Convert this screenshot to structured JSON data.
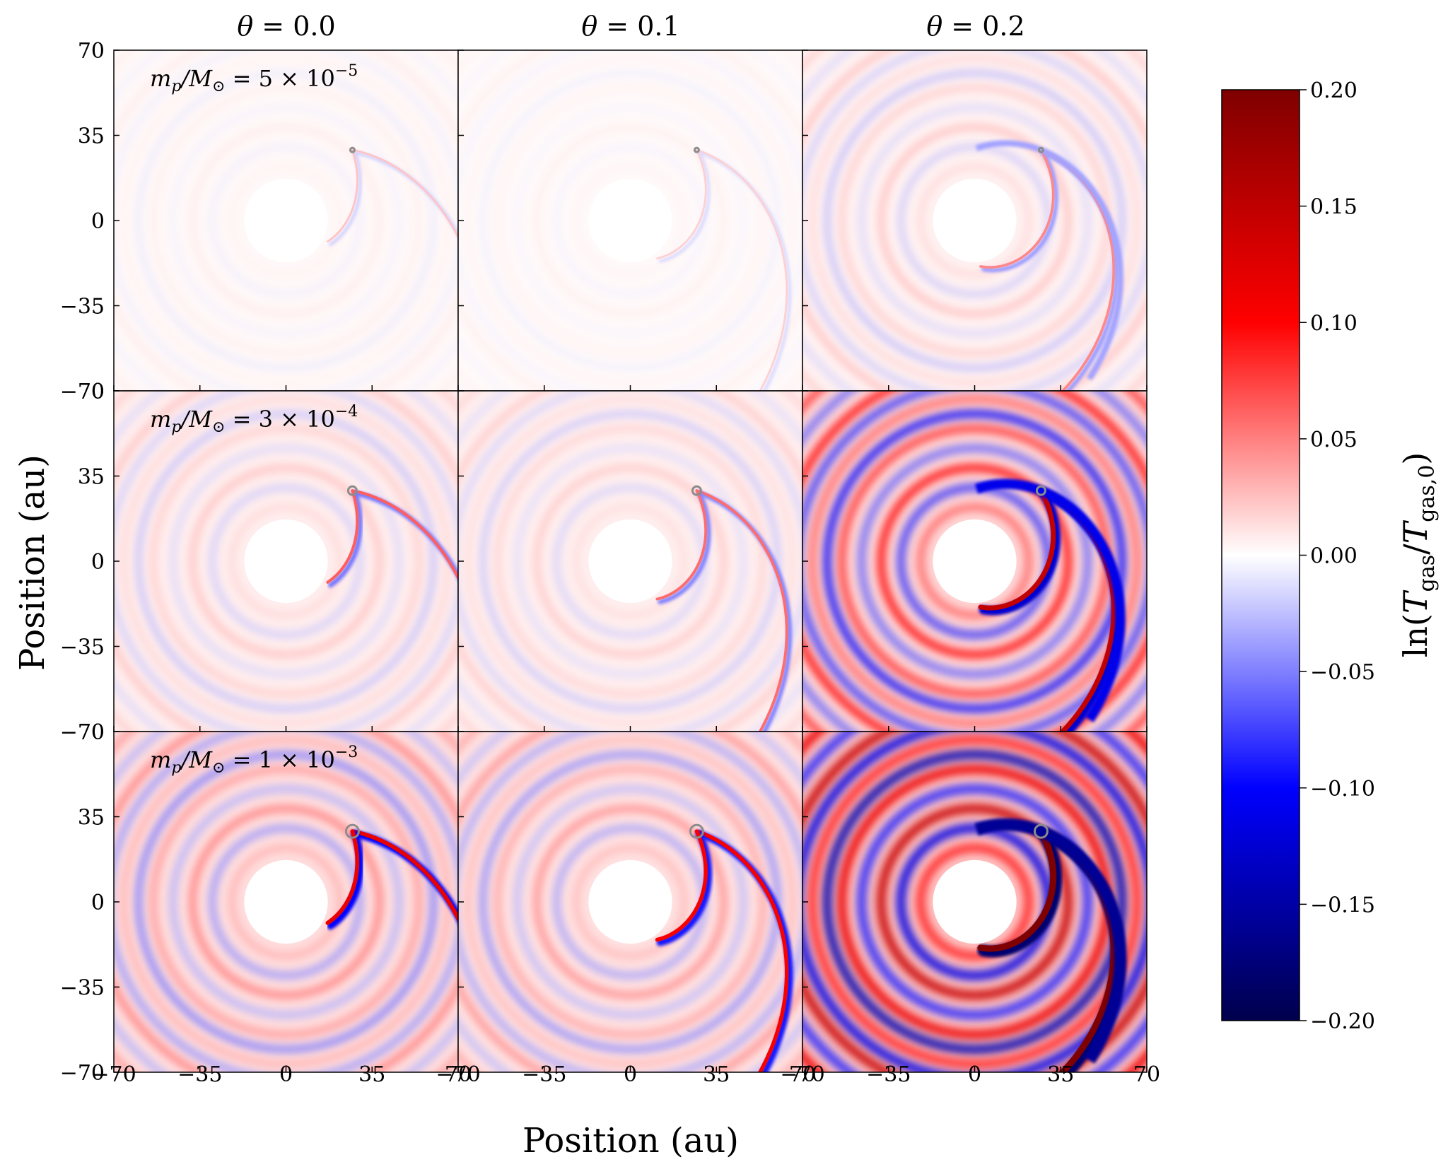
{
  "chart_data": {
    "type": "heatmap",
    "description_note": "3x3 grid of 2D gas temperature perturbation maps with shared colorbar",
    "columns": [
      {
        "label_var": "θ",
        "label_eq": " = ",
        "label_val": "0.0",
        "theta": 0.0
      },
      {
        "label_var": "θ",
        "label_eq": " = ",
        "label_val": "0.1",
        "theta": 0.1
      },
      {
        "label_var": "θ",
        "label_eq": " = ",
        "label_val": "0.2",
        "theta": 0.2
      }
    ],
    "rows": [
      {
        "lhs": "m",
        "lhs_sub": "p",
        "slash": "/M",
        "sun_sub": "⊙",
        "rhs": " = 5 × 10",
        "exp": "−5",
        "mass_ratio": 5e-05
      },
      {
        "lhs": "m",
        "lhs_sub": "p",
        "slash": "/M",
        "sun_sub": "⊙",
        "rhs": " = 3 × 10",
        "exp": "−4",
        "mass_ratio": 0.0003
      },
      {
        "lhs": "m",
        "lhs_sub": "p",
        "slash": "/M",
        "sun_sub": "⊙",
        "rhs": " = 1 × 10",
        "exp": "−3",
        "mass_ratio": 0.001
      }
    ],
    "panel_amplitude": [
      [
        0.022,
        0.018,
        0.045
      ],
      [
        0.06,
        0.055,
        0.14
      ],
      [
        0.11,
        0.1,
        0.2
      ]
    ],
    "planet_position_au": [
      27,
      29
    ],
    "inner_cavity_radius_au": 17,
    "xlim": [
      -70,
      70
    ],
    "ylim": [
      -70,
      70
    ],
    "x_ticks": [
      "−70",
      "−35",
      "0",
      "35",
      "70"
    ],
    "y_ticks": [
      "70",
      "35",
      "0",
      "−35",
      "−70"
    ],
    "x_tick_values": [
      -70,
      -35,
      0,
      35,
      70
    ],
    "y_tick_values": [
      70,
      35,
      0,
      -35,
      -70
    ],
    "xlabel": "Position (au)",
    "ylabel": "Position (au)",
    "colorbar": {
      "min": -0.2,
      "max": 0.2,
      "colormap": "seismic",
      "ticks": [
        "0.20",
        "0.15",
        "0.10",
        "0.05",
        "0.00",
        "−0.05",
        "−0.10",
        "−0.15",
        "−0.20"
      ],
      "tick_values": [
        0.2,
        0.15,
        0.1,
        0.05,
        0.0,
        -0.05,
        -0.1,
        -0.15,
        -0.2
      ],
      "label_prefix": "ln(",
      "label_T1": "T",
      "label_sub1": "gas",
      "label_mid": "/",
      "label_T2": "T",
      "label_sub2": "gas,0",
      "label_suffix": ")"
    },
    "colors": {
      "neg_max": "#00004c",
      "neg": "#0000ff",
      "zero": "#ffffff",
      "pos": "#ff0000",
      "pos_max": "#7f0000",
      "planet_marker": "#8c8c8c"
    }
  }
}
